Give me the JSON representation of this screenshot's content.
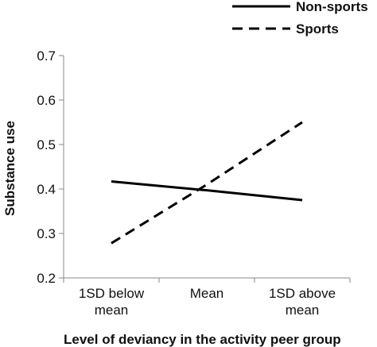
{
  "chart_data": {
    "type": "line",
    "title": "",
    "xlabel": "Level of deviancy in the activity peer group",
    "ylabel": "Substance use",
    "categories": [
      [
        "1SD below",
        "mean"
      ],
      [
        "Mean"
      ],
      [
        "1SD above",
        "mean"
      ]
    ],
    "ylim": [
      0.2,
      0.7
    ],
    "yticks": [
      "0.2",
      "0.3",
      "0.4",
      "0.5",
      "0.6",
      "0.7"
    ],
    "grid": false,
    "legend_position": "top-right",
    "series": [
      {
        "name": "Non-sports",
        "values": [
          0.417,
          0.397,
          0.375
        ],
        "style": "solid",
        "color": "#000000"
      },
      {
        "name": "Sports",
        "values": [
          0.278,
          0.41,
          0.55
        ],
        "style": "dashed",
        "color": "#000000"
      }
    ]
  }
}
